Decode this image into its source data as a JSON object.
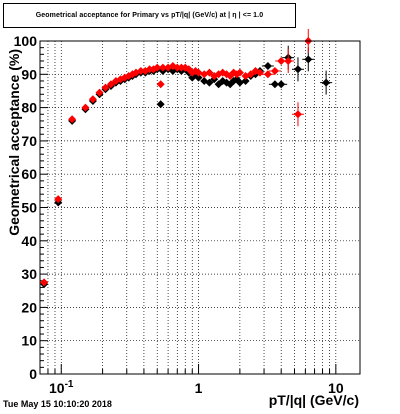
{
  "title": "Geometrical acceptance for Primary vs pT/|q| (GeV/c) at | η | <= 1.0",
  "timestamp": "Tue May 15 10:10:20 2018",
  "chart_data": {
    "type": "scatter",
    "title": "Geometrical acceptance for Primary vs pT/|q| (GeV/c) at | η | <= 1.0",
    "xlabel": "pT/|q| (GeV/c)",
    "ylabel": "Geometrical acceptance (%)",
    "xscale": "log",
    "xlim": [
      0.07,
      15
    ],
    "ylim": [
      0,
      100
    ],
    "grid": true,
    "x_ticks": [
      {
        "value": 0.1,
        "label": "10",
        "exp": "-1"
      },
      {
        "value": 1,
        "label": "1",
        "exp": ""
      },
      {
        "value": 10,
        "label": "10",
        "exp": ""
      }
    ],
    "y_ticks": [
      "0",
      "10",
      "20",
      "30",
      "40",
      "50",
      "60",
      "70",
      "80",
      "90",
      "100"
    ],
    "series": [
      {
        "color": "#000000",
        "points": [
          {
            "x": 0.075,
            "y": 27.0
          },
          {
            "x": 0.095,
            "y": 51.5
          },
          {
            "x": 0.12,
            "y": 76.0
          },
          {
            "x": 0.15,
            "y": 79.5
          },
          {
            "x": 0.17,
            "y": 82.0
          },
          {
            "x": 0.19,
            "y": 84.0
          },
          {
            "x": 0.21,
            "y": 85.5
          },
          {
            "x": 0.23,
            "y": 86.5
          },
          {
            "x": 0.25,
            "y": 87.5
          },
          {
            "x": 0.27,
            "y": 88.0
          },
          {
            "x": 0.29,
            "y": 88.5
          },
          {
            "x": 0.31,
            "y": 89.0
          },
          {
            "x": 0.33,
            "y": 89.5
          },
          {
            "x": 0.35,
            "y": 90.0
          },
          {
            "x": 0.38,
            "y": 90.5
          },
          {
            "x": 0.41,
            "y": 90.5
          },
          {
            "x": 0.44,
            "y": 91.0
          },
          {
            "x": 0.47,
            "y": 91.0
          },
          {
            "x": 0.5,
            "y": 91.5
          },
          {
            "x": 0.53,
            "y": 81.0
          },
          {
            "x": 0.55,
            "y": 91.0
          },
          {
            "x": 0.6,
            "y": 91.5
          },
          {
            "x": 0.65,
            "y": 91.0
          },
          {
            "x": 0.7,
            "y": 91.5
          },
          {
            "x": 0.75,
            "y": 91.0
          },
          {
            "x": 0.8,
            "y": 91.5
          },
          {
            "x": 0.85,
            "y": 90.5
          },
          {
            "x": 0.9,
            "y": 89.0
          },
          {
            "x": 0.95,
            "y": 90.0
          },
          {
            "x": 1.0,
            "y": 89.0
          },
          {
            "x": 1.1,
            "y": 88.0
          },
          {
            "x": 1.2,
            "y": 87.5
          },
          {
            "x": 1.3,
            "y": 88.5
          },
          {
            "x": 1.4,
            "y": 87.0
          },
          {
            "x": 1.5,
            "y": 88.0
          },
          {
            "x": 1.6,
            "y": 87.5
          },
          {
            "x": 1.7,
            "y": 87.0
          },
          {
            "x": 1.8,
            "y": 88.0
          },
          {
            "x": 1.9,
            "y": 88.5
          },
          {
            "x": 2.0,
            "y": 87.5
          },
          {
            "x": 2.2,
            "y": 88.0
          },
          {
            "x": 2.4,
            "y": 89.5
          },
          {
            "x": 2.6,
            "y": 90.0
          },
          {
            "x": 2.8,
            "y": 91.0
          },
          {
            "x": 3.2,
            "y": 92.5
          },
          {
            "x": 3.6,
            "y": 87.0
          },
          {
            "x": 4.0,
            "y": 87.0
          },
          {
            "x": 4.5,
            "y": 95.0
          },
          {
            "x": 5.3,
            "y": 91.5
          },
          {
            "x": 6.3,
            "y": 94.5
          },
          {
            "x": 8.5,
            "y": 87.5
          }
        ]
      },
      {
        "color": "#ff0000",
        "points": [
          {
            "x": 0.075,
            "y": 27.5
          },
          {
            "x": 0.095,
            "y": 52.5
          },
          {
            "x": 0.12,
            "y": 76.5
          },
          {
            "x": 0.15,
            "y": 80.0
          },
          {
            "x": 0.17,
            "y": 82.5
          },
          {
            "x": 0.19,
            "y": 84.5
          },
          {
            "x": 0.21,
            "y": 86.0
          },
          {
            "x": 0.23,
            "y": 87.0
          },
          {
            "x": 0.25,
            "y": 88.0
          },
          {
            "x": 0.27,
            "y": 88.5
          },
          {
            "x": 0.29,
            "y": 89.0
          },
          {
            "x": 0.31,
            "y": 89.5
          },
          {
            "x": 0.33,
            "y": 90.0
          },
          {
            "x": 0.35,
            "y": 90.5
          },
          {
            "x": 0.38,
            "y": 91.0
          },
          {
            "x": 0.41,
            "y": 91.0
          },
          {
            "x": 0.44,
            "y": 91.5
          },
          {
            "x": 0.47,
            "y": 91.5
          },
          {
            "x": 0.5,
            "y": 92.0
          },
          {
            "x": 0.53,
            "y": 87.0
          },
          {
            "x": 0.55,
            "y": 92.0
          },
          {
            "x": 0.6,
            "y": 92.0
          },
          {
            "x": 0.65,
            "y": 92.5
          },
          {
            "x": 0.7,
            "y": 92.0
          },
          {
            "x": 0.75,
            "y": 92.0
          },
          {
            "x": 0.8,
            "y": 92.0
          },
          {
            "x": 0.85,
            "y": 91.5
          },
          {
            "x": 0.9,
            "y": 90.5
          },
          {
            "x": 0.95,
            "y": 91.0
          },
          {
            "x": 1.0,
            "y": 90.5
          },
          {
            "x": 1.1,
            "y": 90.0
          },
          {
            "x": 1.2,
            "y": 90.5
          },
          {
            "x": 1.3,
            "y": 89.5
          },
          {
            "x": 1.4,
            "y": 90.0
          },
          {
            "x": 1.5,
            "y": 90.5
          },
          {
            "x": 1.6,
            "y": 90.0
          },
          {
            "x": 1.7,
            "y": 89.5
          },
          {
            "x": 1.8,
            "y": 90.5
          },
          {
            "x": 1.9,
            "y": 90.0
          },
          {
            "x": 2.0,
            "y": 90.5
          },
          {
            "x": 2.2,
            "y": 89.5
          },
          {
            "x": 2.4,
            "y": 90.0
          },
          {
            "x": 2.6,
            "y": 91.0
          },
          {
            "x": 2.8,
            "y": 90.5
          },
          {
            "x": 3.2,
            "y": 90.0
          },
          {
            "x": 3.6,
            "y": 91.0
          },
          {
            "x": 4.0,
            "y": 94.0
          },
          {
            "x": 4.5,
            "y": 94.0
          },
          {
            "x": 5.3,
            "y": 78.0
          },
          {
            "x": 6.3,
            "y": 100.0
          }
        ]
      }
    ]
  }
}
